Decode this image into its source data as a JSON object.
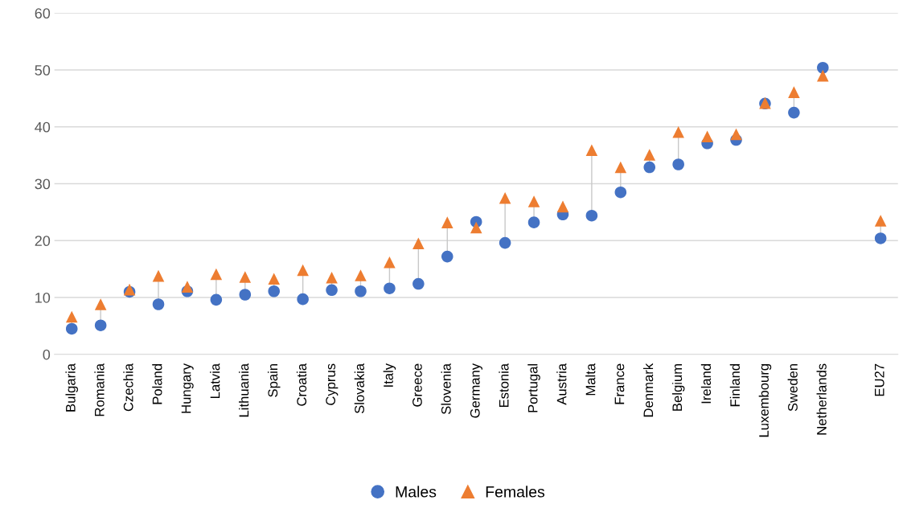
{
  "chart_data": {
    "type": "scatter",
    "categories": [
      "Bulgaria",
      "Romania",
      "Czechia",
      "Poland",
      "Hungary",
      "Latvia",
      "Lithuania",
      "Spain",
      "Croatia",
      "Cyprus",
      "Slovakia",
      "Italy",
      "Greece",
      "Slovenia",
      "Germany",
      "Estonia",
      "Portugal",
      "Austria",
      "Malta",
      "France",
      "Denmark",
      "Belgium",
      "Ireland",
      "Finland",
      "Luxembourg",
      "Sweden",
      "Netherlands",
      null,
      "EU27"
    ],
    "series": [
      {
        "name": "Males",
        "color": "#4472c4",
        "marker": "circle",
        "values": [
          4.5,
          5.1,
          11.0,
          8.8,
          11.1,
          9.6,
          10.5,
          11.1,
          9.7,
          11.3,
          11.1,
          11.6,
          12.4,
          17.2,
          23.3,
          19.6,
          23.2,
          24.6,
          24.4,
          28.5,
          32.9,
          33.4,
          37.1,
          37.7,
          44.1,
          42.5,
          50.4,
          null,
          20.4
        ]
      },
      {
        "name": "Females",
        "color": "#ed7d31",
        "marker": "triangle",
        "values": [
          6.6,
          8.8,
          11.4,
          13.8,
          11.9,
          14.1,
          13.6,
          13.3,
          14.8,
          13.5,
          13.9,
          16.2,
          19.5,
          23.2,
          22.3,
          27.5,
          26.9,
          26.0,
          35.9,
          32.9,
          35.1,
          39.1,
          38.3,
          38.7,
          44.2,
          46.1,
          49.0,
          null,
          23.5
        ]
      }
    ],
    "ylim": [
      0,
      60
    ],
    "yticks": [
      0,
      10,
      20,
      30,
      40,
      50,
      60
    ],
    "grid": "y",
    "legend": "bottom"
  }
}
